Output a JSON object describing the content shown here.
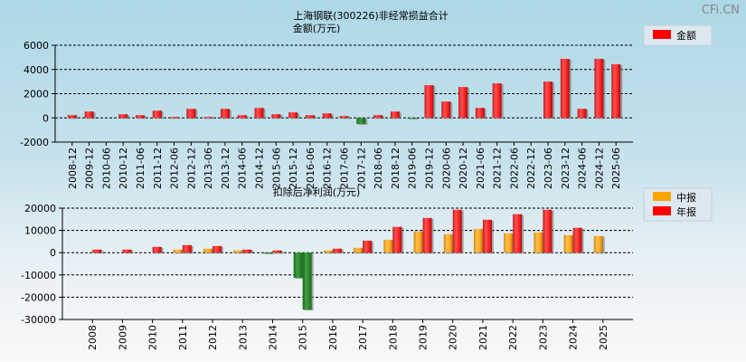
{
  "watermark": "CFi.CN",
  "chart_data": [
    {
      "type": "bar",
      "title": "上海钢联(300226)非经常损益合计",
      "subtitle": "金额(万元)",
      "ylim": [
        -2000,
        6000
      ],
      "yticks": [
        6000,
        4000,
        2000,
        0,
        -2000
      ],
      "legend": [
        "金额"
      ],
      "legend_placement": "top-right",
      "grid": true,
      "categories": [
        "2008-12",
        "2009-12",
        "2010-06",
        "2010-12",
        "2011-06",
        "2011-12",
        "2012-06",
        "2012-12",
        "2013-06",
        "2013-12",
        "2014-06",
        "2014-12",
        "2015-06",
        "2015-12",
        "2016-06",
        "2016-12",
        "2017-06",
        "2017-12",
        "2018-06",
        "2018-12",
        "2019-06",
        "2019-12",
        "2020-06",
        "2020-12",
        "2021-06",
        "2021-12",
        "2022-06",
        "2022-12",
        "2023-06",
        "2023-12",
        "2024-06",
        "2024-12",
        "2025-06"
      ],
      "values": [
        225,
        525,
        0,
        300,
        225,
        600,
        75,
        750,
        75,
        750,
        225,
        825,
        300,
        450,
        225,
        375,
        150,
        -500,
        225,
        525,
        -50,
        2700,
        1350,
        2550,
        825,
        2850,
        0,
        0,
        3000,
        4875,
        750,
        4875,
        4425
      ]
    },
    {
      "type": "bar",
      "title": "扣除后净利润(万元)",
      "ylim": [
        -30000,
        20000
      ],
      "yticks": [
        20000,
        10000,
        0,
        -10000,
        -20000,
        -30000
      ],
      "legend_placement": "top-right",
      "grid": true,
      "categories": [
        "2008",
        "2009",
        "2010",
        "2011",
        "2012",
        "2013",
        "2014",
        "2015",
        "2016",
        "2017",
        "2018",
        "2019",
        "2020",
        "2021",
        "2022",
        "2023",
        "2024",
        "2025"
      ],
      "series": [
        {
          "name": "中报",
          "color": "#ffa500",
          "values": [
            null,
            null,
            null,
            1400,
            1800,
            1000,
            -300,
            -11300,
            1000,
            2200,
            5800,
            9500,
            8300,
            10700,
            8700,
            9100,
            7900,
            7500
          ]
        },
        {
          "name": "年报",
          "color": "#ff0000",
          "values": [
            1400,
            1400,
            2600,
            3400,
            3000,
            1400,
            1000,
            -25600,
            1800,
            5400,
            11600,
            15600,
            19300,
            14800,
            17300,
            19300,
            11200,
            null
          ]
        }
      ]
    }
  ]
}
